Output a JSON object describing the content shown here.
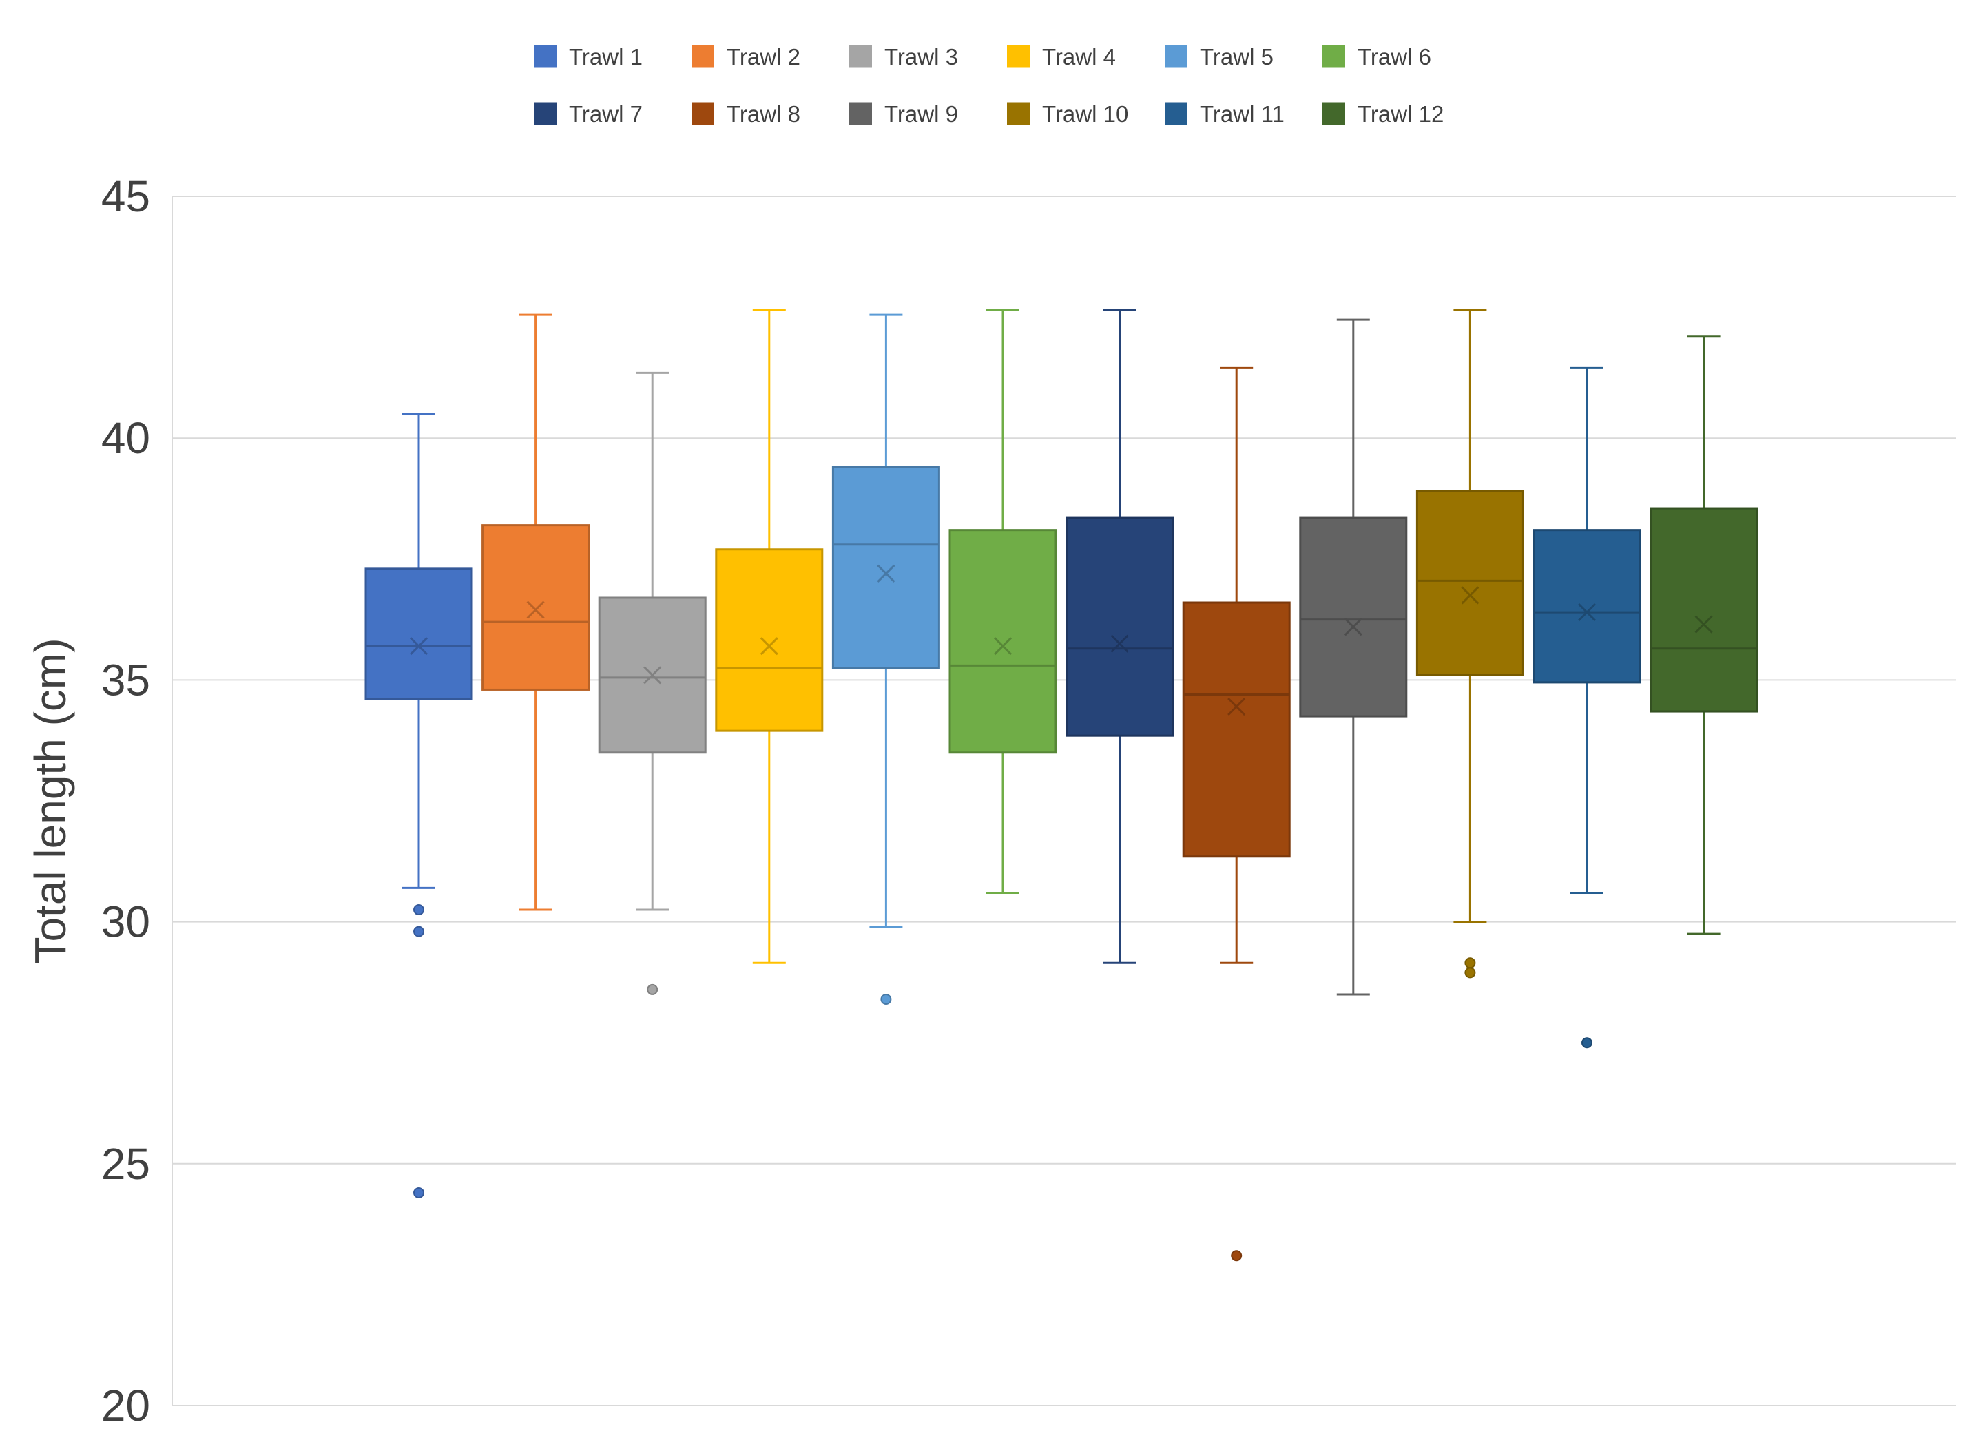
{
  "chart_data": {
    "type": "box",
    "title": "",
    "xlabel": "",
    "ylabel": "Total length (cm)",
    "ylim": [
      20,
      45
    ],
    "yticks": [
      20,
      25,
      30,
      35,
      40,
      45
    ],
    "grid": true,
    "legend_position": "top",
    "series": [
      {
        "name": "Trawl 1",
        "color": "#4472C4",
        "whisker_low": 30.7,
        "q1": 34.6,
        "median": 35.7,
        "q3": 37.3,
        "whisker_high": 40.5,
        "mean": 35.7,
        "outliers": [
          30.25,
          29.8,
          24.4
        ]
      },
      {
        "name": "Trawl 2",
        "color": "#ED7D31",
        "whisker_low": 30.25,
        "q1": 34.8,
        "median": 36.2,
        "q3": 38.2,
        "whisker_high": 42.55,
        "mean": 36.45,
        "outliers": []
      },
      {
        "name": "Trawl 3",
        "color": "#A5A5A5",
        "whisker_low": 30.25,
        "q1": 33.5,
        "median": 35.05,
        "q3": 36.7,
        "whisker_high": 41.35,
        "mean": 35.1,
        "outliers": [
          28.6
        ]
      },
      {
        "name": "Trawl 4",
        "color": "#FFC000",
        "whisker_low": 29.15,
        "q1": 33.95,
        "median": 35.25,
        "q3": 37.7,
        "whisker_high": 42.65,
        "mean": 35.7,
        "outliers": []
      },
      {
        "name": "Trawl 5",
        "color": "#5B9BD5",
        "whisker_low": 29.9,
        "q1": 35.25,
        "median": 37.8,
        "q3": 39.4,
        "whisker_high": 42.55,
        "mean": 37.2,
        "outliers": [
          28.4
        ]
      },
      {
        "name": "Trawl 6",
        "color": "#70AD47",
        "whisker_low": 30.6,
        "q1": 33.5,
        "median": 35.3,
        "q3": 38.1,
        "whisker_high": 42.65,
        "mean": 35.7,
        "outliers": []
      },
      {
        "name": "Trawl 7",
        "color": "#264478",
        "whisker_low": 29.15,
        "q1": 33.85,
        "median": 35.65,
        "q3": 38.35,
        "whisker_high": 42.65,
        "mean": 35.75,
        "outliers": []
      },
      {
        "name": "Trawl 8",
        "color": "#9E480E",
        "whisker_low": 29.15,
        "q1": 31.35,
        "median": 34.7,
        "q3": 36.6,
        "whisker_high": 41.45,
        "mean": 34.45,
        "outliers": [
          23.1
        ]
      },
      {
        "name": "Trawl 9",
        "color": "#636363",
        "whisker_low": 28.5,
        "q1": 34.25,
        "median": 36.25,
        "q3": 38.35,
        "whisker_high": 42.45,
        "mean": 36.1,
        "outliers": []
      },
      {
        "name": "Trawl 10",
        "color": "#997300",
        "whisker_low": 30.0,
        "q1": 35.1,
        "median": 37.05,
        "q3": 38.9,
        "whisker_high": 42.65,
        "mean": 36.75,
        "outliers": [
          29.15,
          28.95
        ]
      },
      {
        "name": "Trawl 11",
        "color": "#255E91",
        "whisker_low": 30.6,
        "q1": 34.95,
        "median": 36.4,
        "q3": 38.1,
        "whisker_high": 41.45,
        "mean": 36.4,
        "outliers": [
          27.5
        ]
      },
      {
        "name": "Trawl 12",
        "color": "#43682B",
        "whisker_low": 29.75,
        "q1": 34.35,
        "median": 35.65,
        "q3": 38.55,
        "whisker_high": 42.1,
        "mean": 36.15,
        "outliers": []
      }
    ]
  }
}
